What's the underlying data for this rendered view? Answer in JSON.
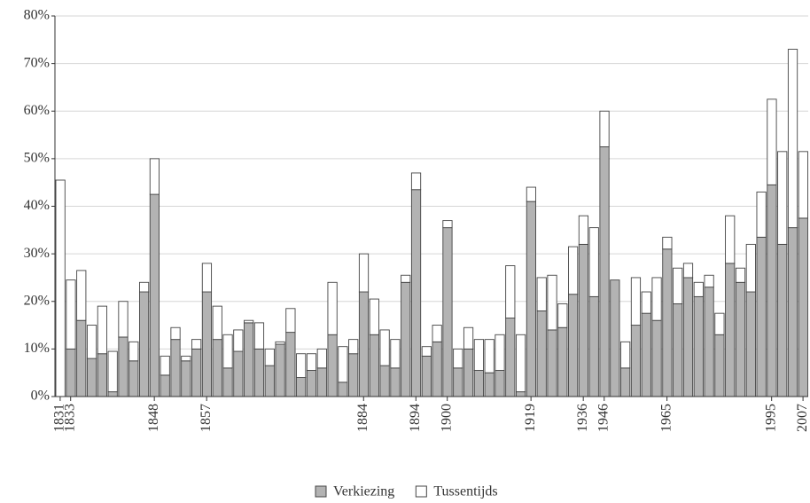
{
  "chart_data": {
    "type": "stacked-bar",
    "categories": [
      "1831",
      "1833",
      null,
      null,
      null,
      null,
      null,
      null,
      null,
      "1848",
      null,
      null,
      null,
      null,
      "1857",
      null,
      null,
      null,
      null,
      null,
      null,
      null,
      null,
      null,
      null,
      null,
      null,
      null,
      null,
      "1884",
      null,
      null,
      null,
      null,
      "1894",
      null,
      null,
      "1900",
      null,
      null,
      null,
      null,
      null,
      null,
      null,
      "1919",
      null,
      null,
      null,
      null,
      "1936",
      null,
      "1946",
      null,
      null,
      null,
      null,
      null,
      "1965",
      null,
      null,
      null,
      null,
      null,
      null,
      null,
      null,
      null,
      "1995",
      null,
      null,
      "2007"
    ],
    "series": [
      {
        "name": "Verkiezing",
        "color": "#b3b3b3",
        "values": [
          0,
          10,
          16,
          8,
          9,
          1,
          12.5,
          7.5,
          22,
          42.5,
          4.5,
          12,
          7.5,
          10,
          22,
          12,
          6,
          9.5,
          15.5,
          10,
          6.5,
          11,
          13.5,
          4,
          5.5,
          6,
          13,
          3,
          9,
          22,
          13,
          6.5,
          6,
          24,
          43.5,
          8.5,
          11.5,
          35.5,
          6,
          10,
          5.5,
          5,
          5.5,
          16.5,
          1,
          41,
          18,
          14,
          14.5,
          21.5,
          32,
          21,
          52.5,
          24.5,
          6,
          15,
          17.5,
          16,
          31,
          19.5,
          25,
          21,
          23,
          13,
          28,
          24,
          22,
          33.5,
          44.5,
          32,
          35.5,
          37.5
        ]
      },
      {
        "name": "Tussentijds",
        "color": "#ffffff",
        "values": [
          45.5,
          14.5,
          10.5,
          7,
          10,
          8.5,
          7.5,
          4,
          2,
          7.5,
          4,
          2.5,
          1,
          2,
          6,
          7,
          7,
          4.5,
          0.5,
          5.5,
          3.5,
          0.5,
          5,
          5,
          3.5,
          4,
          11,
          7.5,
          3,
          8,
          7.5,
          7.5,
          6,
          1.5,
          3.5,
          2,
          3.5,
          1.5,
          4,
          4.5,
          6.5,
          7,
          7.5,
          11,
          12,
          3,
          7,
          11.5,
          5,
          10,
          6,
          14.5,
          7.5,
          0,
          5.5,
          10,
          4.5,
          9,
          2.5,
          7.5,
          3,
          3,
          2.5,
          4.5,
          10,
          3,
          10,
          9.5,
          18,
          19.5,
          37.5,
          14
        ]
      }
    ],
    "ylim": [
      0,
      80
    ],
    "yticks": [
      {
        "value": 0,
        "label": "0%"
      },
      {
        "value": 10,
        "label": "10%"
      },
      {
        "value": 20,
        "label": "20%"
      },
      {
        "value": 30,
        "label": "30%"
      },
      {
        "value": 40,
        "label": "40%"
      },
      {
        "value": 50,
        "label": "50%"
      },
      {
        "value": 60,
        "label": "60%"
      },
      {
        "value": 70,
        "label": "70%"
      },
      {
        "value": 80,
        "label": "80%"
      }
    ],
    "grid": true,
    "legend": "bottom"
  }
}
